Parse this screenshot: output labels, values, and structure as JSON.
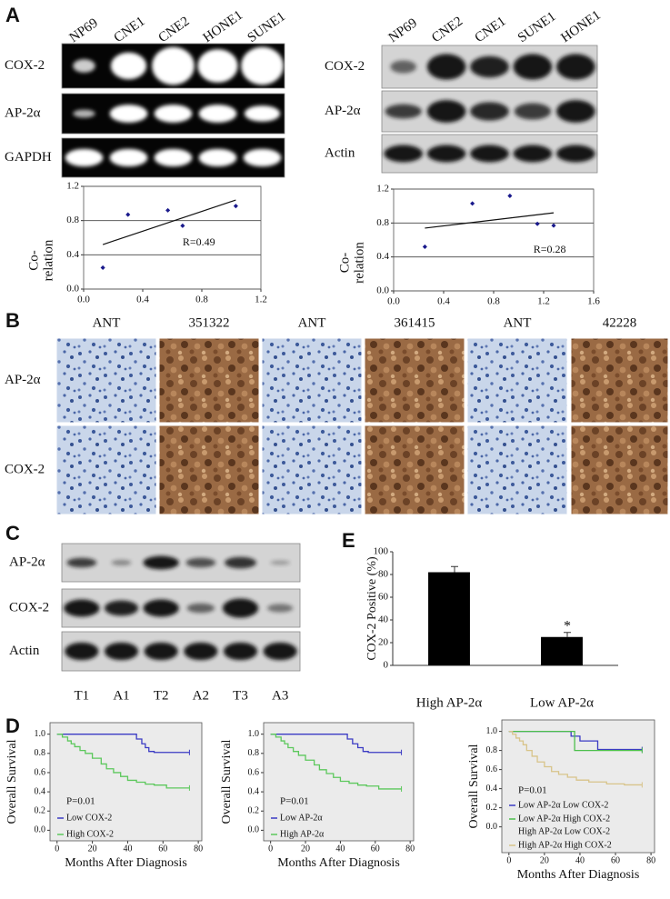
{
  "figure": {
    "panel_labels": {
      "a": "A",
      "b": "B",
      "c": "C",
      "d": "D",
      "e": "E"
    },
    "blot_a_left": {
      "lanes": [
        "NP69",
        "CNE1",
        "CNE2",
        "HONE1",
        "SUNE1"
      ],
      "rows": [
        "COX-2",
        "AP-2α",
        "GAPDH"
      ]
    },
    "blot_a_right": {
      "lanes": [
        "NP69",
        "CNE2",
        "CNE1",
        "SUNE1",
        "HONE1"
      ],
      "rows": [
        "COX-2",
        "AP-2α",
        "Actin"
      ]
    },
    "ihc_b": {
      "columns": [
        "ANT",
        "351322",
        "ANT",
        "361415",
        "ANT",
        "42228"
      ],
      "rows": [
        "AP-2α",
        "COX-2"
      ]
    },
    "blot_c": {
      "lanes": [
        "T1",
        "A1",
        "T2",
        "A2",
        "T3",
        "A3"
      ],
      "rows": [
        "AP-2α",
        "COX-2",
        "Actin"
      ]
    }
  },
  "chart_data": [
    {
      "type": "scatter",
      "x": [
        0.13,
        0.3,
        0.57,
        0.67,
        1.03
      ],
      "values": [
        0.25,
        0.87,
        0.92,
        0.74,
        0.97
      ],
      "color": "#1a1a8c",
      "trendline": {
        "x": [
          0.13,
          1.03
        ],
        "values": [
          0.52,
          1.04
        ]
      },
      "annotation": "R=0.49",
      "ylabel": [
        "Co-",
        "relation"
      ],
      "xlim": [
        0,
        1.2
      ],
      "ylim": [
        0,
        1.2
      ],
      "xticks": [
        {
          "value": 0,
          "label": "0.0"
        },
        0.4,
        0.8,
        1.2
      ],
      "yticks": [
        {
          "value": 0,
          "label": "0.0"
        },
        0.4,
        0.8,
        1.2
      ],
      "grid": true
    },
    {
      "type": "scatter",
      "x": [
        0.25,
        0.63,
        0.93,
        1.15,
        1.28
      ],
      "values": [
        0.52,
        1.03,
        1.12,
        0.79,
        0.77
      ],
      "color": "#1a1a8c",
      "trendline": {
        "x": [
          0.25,
          1.28
        ],
        "values": [
          0.74,
          0.92
        ]
      },
      "annotation": "R=0.28",
      "ylabel": [
        "Co-",
        "relation"
      ],
      "xlim": [
        0,
        1.6
      ],
      "ylim": [
        0,
        1.2
      ],
      "xticks": [
        {
          "value": 0,
          "label": "0.0"
        },
        0.4,
        0.8,
        1.2,
        1.6
      ],
      "yticks": [
        {
          "value": 0,
          "label": "0.0"
        },
        0.4,
        0.8,
        1.2
      ],
      "grid": true
    },
    {
      "type": "bar",
      "categories": [
        "High AP-2α",
        "Low  AP-2α"
      ],
      "values": [
        82,
        25
      ],
      "errors": [
        5,
        4
      ],
      "annotation": "*",
      "ylabel": "COX-2  Positive  (%)",
      "color": "#000000",
      "ylim": [
        0,
        100
      ],
      "yticks": [
        0,
        20,
        40,
        60,
        80,
        100
      ]
    },
    {
      "type": "line",
      "step": true,
      "background": "#ebebeb",
      "annotation": "P=0.01",
      "xlabel": "Months After Diagnosis",
      "ylabel": "Overall Survival",
      "xlim": [
        -4,
        82
      ],
      "ylim": [
        -0.11,
        1.12
      ],
      "xticks": [
        0,
        20,
        40,
        60,
        80
      ],
      "yticks": [
        {
          "value": 0,
          "label": "0.0"
        },
        0.2,
        0.4,
        0.6,
        0.8,
        {
          "value": 1,
          "label": "1.0"
        }
      ],
      "series": [
        {
          "name": "Low COX-2",
          "color": "#3b3bc4",
          "x": [
            0,
            45,
            48,
            50,
            52,
            55,
            75
          ],
          "values": [
            1,
            0.95,
            0.9,
            0.86,
            0.82,
            0.81,
            0.81
          ]
        },
        {
          "name": "High COX-2",
          "color": "#5cc85c",
          "x": [
            0,
            3,
            6,
            8,
            10,
            13,
            16,
            20,
            25,
            28,
            32,
            36,
            40,
            45,
            50,
            55,
            62,
            75
          ],
          "values": [
            1,
            0.97,
            0.93,
            0.9,
            0.87,
            0.83,
            0.8,
            0.75,
            0.69,
            0.64,
            0.6,
            0.56,
            0.52,
            0.5,
            0.48,
            0.47,
            0.44,
            0.44
          ]
        }
      ]
    },
    {
      "type": "line",
      "step": true,
      "background": "#ebebeb",
      "annotation": "P=0.01",
      "xlabel": "Months After Diagnosis",
      "ylabel": "Overall Survival",
      "xlim": [
        -4,
        82
      ],
      "ylim": [
        -0.11,
        1.12
      ],
      "xticks": [
        0,
        20,
        40,
        60,
        80
      ],
      "yticks": [
        {
          "value": 0,
          "label": "0.0"
        },
        0.2,
        0.4,
        0.6,
        0.8,
        {
          "value": 1,
          "label": "1.0"
        }
      ],
      "series": [
        {
          "name": "Low AP-2α",
          "color": "#3b3bc4",
          "x": [
            0,
            44,
            47,
            50,
            53,
            56,
            75
          ],
          "values": [
            1,
            0.95,
            0.9,
            0.86,
            0.82,
            0.81,
            0.81
          ]
        },
        {
          "name": "High  AP-2α",
          "color": "#5cc85c",
          "x": [
            0,
            3,
            6,
            8,
            10,
            13,
            16,
            20,
            25,
            28,
            32,
            36,
            40,
            45,
            50,
            55,
            62,
            75
          ],
          "values": [
            1,
            0.97,
            0.93,
            0.9,
            0.86,
            0.82,
            0.78,
            0.73,
            0.68,
            0.63,
            0.59,
            0.55,
            0.51,
            0.49,
            0.47,
            0.46,
            0.43,
            0.43
          ]
        }
      ]
    },
    {
      "type": "line",
      "step": true,
      "background": "#ebebeb",
      "annotation": "P=0.01",
      "xlabel": "Months After Diagnosis",
      "ylabel": "Overall Survival",
      "xlim": [
        -4,
        82
      ],
      "ylim": [
        -0.27,
        1.12
      ],
      "xticks": [
        0,
        20,
        40,
        60,
        80
      ],
      "yticks": [
        {
          "value": 0,
          "label": "0.0"
        },
        0.2,
        0.4,
        0.6,
        0.8,
        {
          "value": 1,
          "label": "1.0"
        }
      ],
      "series": [
        {
          "name": "Low AP-2α Low COX-2",
          "color": "#3b3bc4",
          "x": [
            0,
            35,
            40,
            50,
            75
          ],
          "values": [
            1,
            0.95,
            0.9,
            0.81,
            0.81
          ]
        },
        {
          "name": "Low AP-2α  High  COX-2",
          "color": "#4cbf4c",
          "x": [
            0,
            35,
            37,
            75
          ],
          "values": [
            1,
            1,
            0.8,
            0.8
          ]
        },
        {
          "name": "High AP-2α Low COX-2"
        },
        {
          "name": "High  AP-2α High COX-2",
          "color": "#d8c48a",
          "x": [
            0,
            2,
            4,
            6,
            8,
            10,
            13,
            16,
            20,
            24,
            28,
            33,
            38,
            45,
            55,
            65,
            75
          ],
          "values": [
            1,
            0.97,
            0.93,
            0.9,
            0.86,
            0.8,
            0.74,
            0.68,
            0.63,
            0.58,
            0.55,
            0.52,
            0.49,
            0.47,
            0.45,
            0.44,
            0.44
          ]
        }
      ]
    }
  ]
}
